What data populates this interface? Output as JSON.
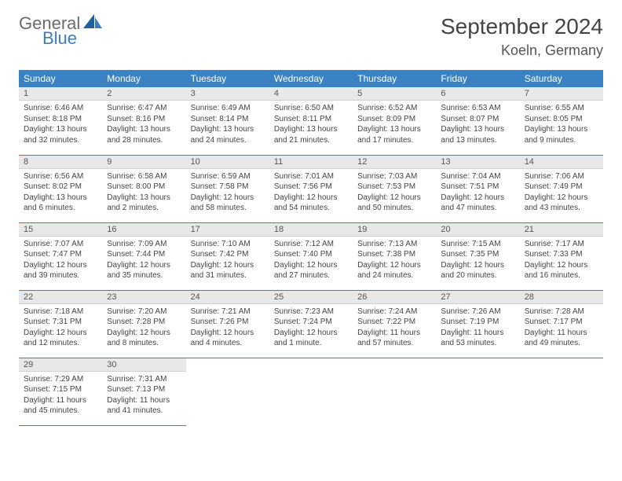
{
  "logo": {
    "general": "General",
    "blue": "Blue"
  },
  "month_title": "September 2024",
  "location": "Koeln, Germany",
  "weekdays": [
    "Sunday",
    "Monday",
    "Tuesday",
    "Wednesday",
    "Thursday",
    "Friday",
    "Saturday"
  ],
  "colors": {
    "header_bg": "#3b82c4",
    "header_text": "#ffffff",
    "daynum_bg": "#e8e8e8",
    "border": "#3b82c4",
    "logo_gray": "#6b6b6b",
    "logo_blue": "#3b7bbf"
  },
  "days": [
    {
      "n": "1",
      "sunrise": "Sunrise: 6:46 AM",
      "sunset": "Sunset: 8:18 PM",
      "day1": "Daylight: 13 hours",
      "day2": "and 32 minutes."
    },
    {
      "n": "2",
      "sunrise": "Sunrise: 6:47 AM",
      "sunset": "Sunset: 8:16 PM",
      "day1": "Daylight: 13 hours",
      "day2": "and 28 minutes."
    },
    {
      "n": "3",
      "sunrise": "Sunrise: 6:49 AM",
      "sunset": "Sunset: 8:14 PM",
      "day1": "Daylight: 13 hours",
      "day2": "and 24 minutes."
    },
    {
      "n": "4",
      "sunrise": "Sunrise: 6:50 AM",
      "sunset": "Sunset: 8:11 PM",
      "day1": "Daylight: 13 hours",
      "day2": "and 21 minutes."
    },
    {
      "n": "5",
      "sunrise": "Sunrise: 6:52 AM",
      "sunset": "Sunset: 8:09 PM",
      "day1": "Daylight: 13 hours",
      "day2": "and 17 minutes."
    },
    {
      "n": "6",
      "sunrise": "Sunrise: 6:53 AM",
      "sunset": "Sunset: 8:07 PM",
      "day1": "Daylight: 13 hours",
      "day2": "and 13 minutes."
    },
    {
      "n": "7",
      "sunrise": "Sunrise: 6:55 AM",
      "sunset": "Sunset: 8:05 PM",
      "day1": "Daylight: 13 hours",
      "day2": "and 9 minutes."
    },
    {
      "n": "8",
      "sunrise": "Sunrise: 6:56 AM",
      "sunset": "Sunset: 8:02 PM",
      "day1": "Daylight: 13 hours",
      "day2": "and 6 minutes."
    },
    {
      "n": "9",
      "sunrise": "Sunrise: 6:58 AM",
      "sunset": "Sunset: 8:00 PM",
      "day1": "Daylight: 13 hours",
      "day2": "and 2 minutes."
    },
    {
      "n": "10",
      "sunrise": "Sunrise: 6:59 AM",
      "sunset": "Sunset: 7:58 PM",
      "day1": "Daylight: 12 hours",
      "day2": "and 58 minutes."
    },
    {
      "n": "11",
      "sunrise": "Sunrise: 7:01 AM",
      "sunset": "Sunset: 7:56 PM",
      "day1": "Daylight: 12 hours",
      "day2": "and 54 minutes."
    },
    {
      "n": "12",
      "sunrise": "Sunrise: 7:03 AM",
      "sunset": "Sunset: 7:53 PM",
      "day1": "Daylight: 12 hours",
      "day2": "and 50 minutes."
    },
    {
      "n": "13",
      "sunrise": "Sunrise: 7:04 AM",
      "sunset": "Sunset: 7:51 PM",
      "day1": "Daylight: 12 hours",
      "day2": "and 47 minutes."
    },
    {
      "n": "14",
      "sunrise": "Sunrise: 7:06 AM",
      "sunset": "Sunset: 7:49 PM",
      "day1": "Daylight: 12 hours",
      "day2": "and 43 minutes."
    },
    {
      "n": "15",
      "sunrise": "Sunrise: 7:07 AM",
      "sunset": "Sunset: 7:47 PM",
      "day1": "Daylight: 12 hours",
      "day2": "and 39 minutes."
    },
    {
      "n": "16",
      "sunrise": "Sunrise: 7:09 AM",
      "sunset": "Sunset: 7:44 PM",
      "day1": "Daylight: 12 hours",
      "day2": "and 35 minutes."
    },
    {
      "n": "17",
      "sunrise": "Sunrise: 7:10 AM",
      "sunset": "Sunset: 7:42 PM",
      "day1": "Daylight: 12 hours",
      "day2": "and 31 minutes."
    },
    {
      "n": "18",
      "sunrise": "Sunrise: 7:12 AM",
      "sunset": "Sunset: 7:40 PM",
      "day1": "Daylight: 12 hours",
      "day2": "and 27 minutes."
    },
    {
      "n": "19",
      "sunrise": "Sunrise: 7:13 AM",
      "sunset": "Sunset: 7:38 PM",
      "day1": "Daylight: 12 hours",
      "day2": "and 24 minutes."
    },
    {
      "n": "20",
      "sunrise": "Sunrise: 7:15 AM",
      "sunset": "Sunset: 7:35 PM",
      "day1": "Daylight: 12 hours",
      "day2": "and 20 minutes."
    },
    {
      "n": "21",
      "sunrise": "Sunrise: 7:17 AM",
      "sunset": "Sunset: 7:33 PM",
      "day1": "Daylight: 12 hours",
      "day2": "and 16 minutes."
    },
    {
      "n": "22",
      "sunrise": "Sunrise: 7:18 AM",
      "sunset": "Sunset: 7:31 PM",
      "day1": "Daylight: 12 hours",
      "day2": "and 12 minutes."
    },
    {
      "n": "23",
      "sunrise": "Sunrise: 7:20 AM",
      "sunset": "Sunset: 7:28 PM",
      "day1": "Daylight: 12 hours",
      "day2": "and 8 minutes."
    },
    {
      "n": "24",
      "sunrise": "Sunrise: 7:21 AM",
      "sunset": "Sunset: 7:26 PM",
      "day1": "Daylight: 12 hours",
      "day2": "and 4 minutes."
    },
    {
      "n": "25",
      "sunrise": "Sunrise: 7:23 AM",
      "sunset": "Sunset: 7:24 PM",
      "day1": "Daylight: 12 hours",
      "day2": "and 1 minute."
    },
    {
      "n": "26",
      "sunrise": "Sunrise: 7:24 AM",
      "sunset": "Sunset: 7:22 PM",
      "day1": "Daylight: 11 hours",
      "day2": "and 57 minutes."
    },
    {
      "n": "27",
      "sunrise": "Sunrise: 7:26 AM",
      "sunset": "Sunset: 7:19 PM",
      "day1": "Daylight: 11 hours",
      "day2": "and 53 minutes."
    },
    {
      "n": "28",
      "sunrise": "Sunrise: 7:28 AM",
      "sunset": "Sunset: 7:17 PM",
      "day1": "Daylight: 11 hours",
      "day2": "and 49 minutes."
    },
    {
      "n": "29",
      "sunrise": "Sunrise: 7:29 AM",
      "sunset": "Sunset: 7:15 PM",
      "day1": "Daylight: 11 hours",
      "day2": "and 45 minutes."
    },
    {
      "n": "30",
      "sunrise": "Sunrise: 7:31 AM",
      "sunset": "Sunset: 7:13 PM",
      "day1": "Daylight: 11 hours",
      "day2": "and 41 minutes."
    }
  ]
}
